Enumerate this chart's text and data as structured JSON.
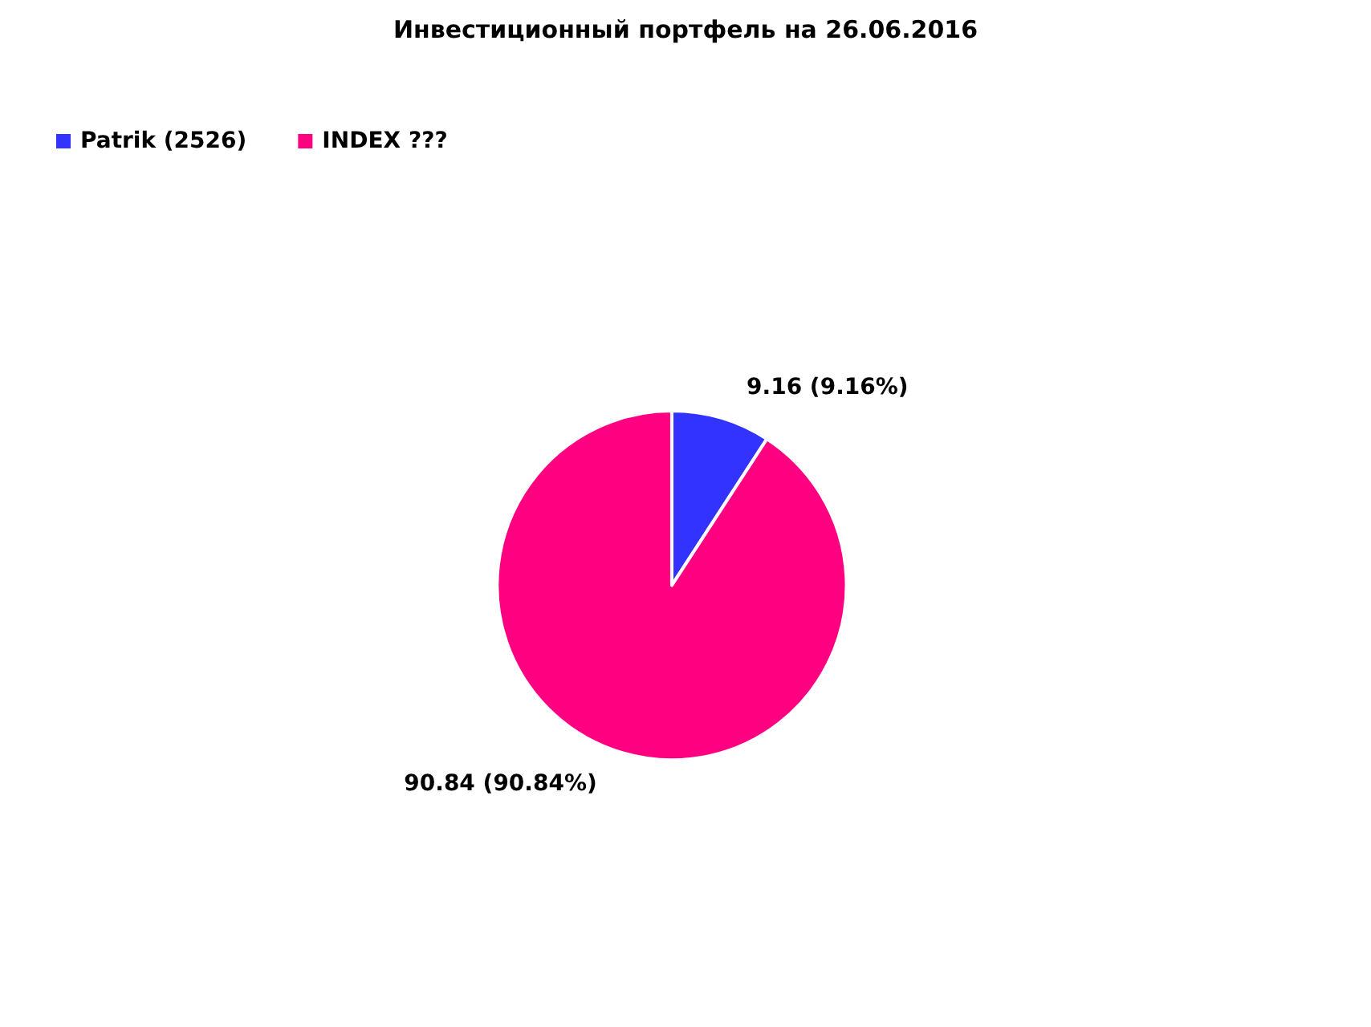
{
  "chart_data": {
    "type": "pie",
    "title": "Инвестиционный портфель на 26.06.2016",
    "categories": [
      "Patrik (2526)",
      "INDEX ???"
    ],
    "values": [
      9.16,
      90.84
    ],
    "colors": [
      "#3333ff",
      "#ff0080"
    ],
    "value_labels": [
      "9.16 (9.16%)",
      "90.84 (90.84%)"
    ],
    "legend": "top left"
  }
}
